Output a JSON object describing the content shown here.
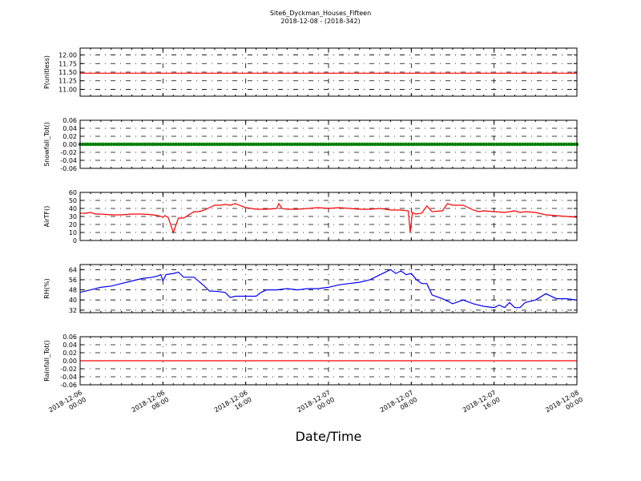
{
  "chart_title": "Site6_Dyckman_Houses_Fifteen",
  "chart_subtitle": "2018-12-08 - (2018-342)",
  "x_axis": {
    "label": "Date/Time",
    "ticks": [
      {
        "line1": "2018-12-06",
        "line2": "00:00"
      },
      {
        "line1": "2018-12-06",
        "line2": "08:00"
      },
      {
        "line1": "2018-12-06",
        "line2": "16:00"
      },
      {
        "line1": "2018-12-07",
        "line2": "00:00"
      },
      {
        "line1": "2018-12-07",
        "line2": "08:00"
      },
      {
        "line1": "2018-12-07",
        "line2": "16:00"
      },
      {
        "line1": "2018-12-08",
        "line2": "00:00"
      }
    ]
  },
  "chart_data": [
    {
      "type": "line",
      "ylabel": "P(unitless)",
      "ylim": [
        10.8,
        12.2
      ],
      "yticks": [
        "12.00",
        "11.75",
        "11.50",
        "11.25",
        "11.00"
      ],
      "ytick_values": [
        12.0,
        11.75,
        11.5,
        11.25,
        11.0
      ],
      "color": "#ff0000",
      "x_hours": [
        0,
        48
      ],
      "values": [
        11.47,
        11.47
      ]
    },
    {
      "type": "line",
      "ylabel": "Snowfall_Tot()",
      "ylim": [
        -0.06,
        0.06
      ],
      "yticks": [
        "0.06",
        "0.04",
        "0.02",
        "0.00",
        "-0.02",
        "-0.04",
        "-0.06"
      ],
      "ytick_values": [
        0.06,
        0.04,
        0.02,
        0.0,
        -0.02,
        -0.04,
        -0.06
      ],
      "color": "#008000",
      "markers": true,
      "x_hours": [
        0,
        48
      ],
      "values": [
        0.0,
        0.0
      ]
    },
    {
      "type": "line",
      "ylabel": "AirTF()",
      "ylim": [
        0,
        60
      ],
      "yticks": [
        "60",
        "50",
        "40",
        "30",
        "20",
        "10",
        "0"
      ],
      "ytick_values": [
        60,
        50,
        40,
        30,
        20,
        10,
        0
      ],
      "color": "#ff0000",
      "x_hours": [
        0,
        0.5,
        1,
        1.5,
        2,
        3,
        4,
        5,
        6,
        7,
        7.5,
        7.8,
        8.0,
        8.2,
        8.5,
        9,
        9.5,
        10,
        11,
        11.5,
        12,
        13,
        13.5,
        14,
        14.5,
        15,
        16,
        17,
        17.5,
        18,
        19,
        19.2,
        19.5,
        20,
        21,
        22,
        23,
        24,
        25,
        26,
        27,
        28,
        29,
        30,
        31,
        31.7,
        31.9,
        32.1,
        32.4,
        33,
        33.5,
        34,
        35,
        35.5,
        36,
        37,
        38,
        38.5,
        39,
        40,
        41,
        42,
        42.5,
        43,
        44,
        45,
        46,
        47,
        48
      ],
      "values": [
        34,
        34,
        35,
        33,
        33,
        32,
        32,
        33,
        33,
        32,
        31,
        30,
        29,
        31,
        29,
        10,
        28,
        28,
        36,
        36,
        38,
        44,
        44,
        45,
        44,
        46,
        41,
        39,
        39,
        39,
        40,
        46,
        40,
        39,
        39,
        40,
        41,
        40,
        41,
        40,
        39,
        39,
        40,
        38,
        38,
        37,
        10,
        35,
        33,
        34,
        43,
        36,
        37,
        46,
        44,
        44,
        38,
        36,
        37,
        36,
        35,
        37,
        35,
        36,
        35,
        32,
        31,
        30,
        29
      ]
    },
    {
      "type": "line",
      "ylabel": "RH(%)",
      "ylim": [
        30,
        68
      ],
      "yticks": [
        "64",
        "56",
        "48",
        "40",
        "32"
      ],
      "ytick_values": [
        64,
        56,
        48,
        40,
        32
      ],
      "color": "#0000ff",
      "x_hours": [
        0,
        1,
        2,
        3,
        4,
        5,
        6,
        7,
        7.5,
        7.8,
        8,
        8.3,
        9,
        9.5,
        10,
        11,
        12,
        12.5,
        13,
        14,
        14.5,
        15,
        16,
        17,
        17.5,
        18,
        19,
        20,
        21,
        22,
        23,
        24,
        25,
        26,
        27,
        28,
        29,
        30,
        30.5,
        31,
        31.5,
        32,
        32.5,
        33,
        33.5,
        34,
        35,
        36,
        37,
        38,
        39,
        40,
        40.5,
        41,
        41.5,
        42,
        42.5,
        43,
        44,
        45,
        46,
        47,
        48
      ],
      "values": [
        46,
        48,
        50,
        51,
        53,
        55,
        57,
        58,
        59,
        60,
        55,
        60,
        61,
        62,
        58,
        58,
        51,
        47,
        47,
        46,
        42,
        43,
        43,
        43,
        46,
        48,
        48,
        49,
        48,
        49,
        49,
        50,
        52,
        53,
        54,
        56,
        60,
        64,
        61,
        63,
        60,
        61,
        56,
        53,
        53,
        44,
        41,
        37,
        40,
        37,
        35,
        34,
        36,
        34,
        38,
        34,
        34,
        38,
        40,
        45,
        41,
        41,
        40
      ]
    },
    {
      "type": "line",
      "ylabel": "Rainfall_Tot()",
      "ylim": [
        -0.06,
        0.06
      ],
      "yticks": [
        "0.06",
        "0.04",
        "0.02",
        "0.00",
        "-0.02",
        "-0.04",
        "-0.06"
      ],
      "ytick_values": [
        0.06,
        0.04,
        0.02,
        0.0,
        -0.02,
        -0.04,
        -0.06
      ],
      "color": "#ff0000",
      "x_hours": [
        0,
        48
      ],
      "values": [
        0.0,
        0.0
      ]
    }
  ]
}
